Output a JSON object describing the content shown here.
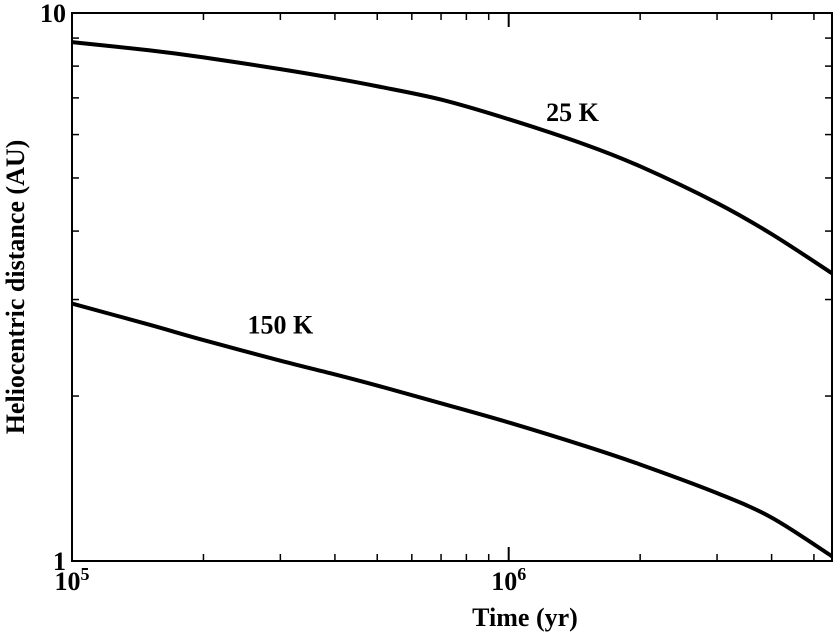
{
  "chart_data": {
    "type": "line",
    "title": "",
    "xlabel": "Time (yr)",
    "ylabel": "Heliocentric distance (AU)",
    "x_scale": "log",
    "y_scale": "log",
    "xlim": [
      100000,
      5500000
    ],
    "ylim": [
      1,
      10
    ],
    "grid": false,
    "x_ticks": [
      {
        "value": 100000,
        "base": "10",
        "exp": "5"
      },
      {
        "value": 1000000,
        "base": "10",
        "exp": "6"
      }
    ],
    "y_ticks": [
      {
        "value": 1,
        "label": "1"
      },
      {
        "value": 10,
        "label": "10"
      }
    ],
    "series": [
      {
        "name": "25 K",
        "color": "#000000",
        "x": [
          100000,
          150000,
          200000,
          300000,
          400000,
          500000,
          700000,
          1000000,
          1500000,
          2000000,
          3000000,
          4000000,
          5500000
        ],
        "y": [
          8.85,
          8.55,
          8.3,
          7.9,
          7.6,
          7.35,
          6.95,
          6.4,
          5.75,
          5.25,
          4.5,
          3.95,
          3.35
        ]
      },
      {
        "name": "150 K",
        "color": "#000000",
        "x": [
          100000,
          150000,
          200000,
          300000,
          400000,
          500000,
          700000,
          1000000,
          1500000,
          2000000,
          3000000,
          4000000,
          5500000
        ],
        "y": [
          2.95,
          2.7,
          2.53,
          2.32,
          2.19,
          2.09,
          1.94,
          1.79,
          1.62,
          1.5,
          1.33,
          1.2,
          1.02
        ]
      }
    ],
    "annotations": [
      {
        "text": "25 K",
        "series": "25 K",
        "x": 1400000,
        "y": 6.35
      },
      {
        "text": "150 K",
        "series": "150 K",
        "x": 300000,
        "y": 2.6
      }
    ]
  }
}
